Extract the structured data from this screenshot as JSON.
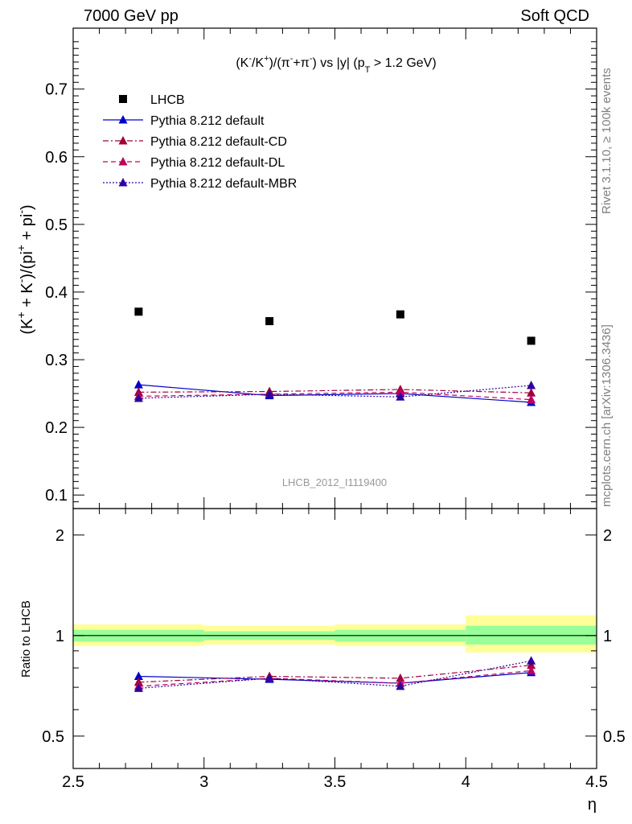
{
  "header": {
    "left": "7000 GeV pp",
    "right": "Soft QCD"
  },
  "side_labels": {
    "rivet": "Rivet 3.1.10, ≥ 100k events",
    "mcplots": "mcplots.cern.ch [arXiv:1306.3436]"
  },
  "colors": {
    "lhcb": "#000000",
    "default": "#0000cc",
    "cd": "#a0003c",
    "dl": "#c00060",
    "mbr": "#3000a0",
    "band_outer": "#ffff99",
    "band_inner": "#99ff99"
  },
  "chart_data": [
    {
      "type": "scatter",
      "title_parts": [
        "(K",
        "-",
        "/K",
        "+",
        ")/(π",
        "-",
        "+π",
        "-",
        ") vs |y| (p",
        "T",
        " > 1.2 GeV)"
      ],
      "ylabel_parts": [
        "(K",
        "+",
        " + K",
        "-",
        ")/(pi",
        "+",
        " + pi",
        "-",
        ")"
      ],
      "analysis_label": "LHCB_2012_I1119400",
      "xlim": [
        2.5,
        4.5
      ],
      "ylim": [
        0.08,
        0.79
      ],
      "yticks": [
        0.1,
        0.2,
        0.3,
        0.4,
        0.5,
        0.6,
        0.7
      ],
      "ytick_labels": [
        "0.1",
        "0.2",
        "0.3",
        "0.4",
        "0.5",
        "0.6",
        "0.7"
      ],
      "legend_position": "top-left",
      "series": [
        {
          "name": "LHCB",
          "style": "data",
          "color": "lhcb",
          "x": [
            2.75,
            3.25,
            3.75,
            4.25
          ],
          "y": [
            0.371,
            0.357,
            0.367,
            0.328
          ]
        },
        {
          "name": "Pythia 8.212 default",
          "style": "solid",
          "color": "default",
          "x": [
            2.75,
            3.25,
            3.75,
            4.25
          ],
          "y": [
            0.263,
            0.247,
            0.25,
            0.237
          ],
          "err": [
            0.005,
            0.005,
            0.005,
            0.005
          ]
        },
        {
          "name": "Pythia 8.212 default-CD",
          "style": "dashdot",
          "color": "cd",
          "x": [
            2.75,
            3.25,
            3.75,
            4.25
          ],
          "y": [
            0.252,
            0.253,
            0.256,
            0.251
          ],
          "err": [
            0.005,
            0.005,
            0.005,
            0.005
          ]
        },
        {
          "name": "Pythia 8.212 default-DL",
          "style": "dashed",
          "color": "dl",
          "x": [
            2.75,
            3.25,
            3.75,
            4.25
          ],
          "y": [
            0.246,
            0.249,
            0.252,
            0.241
          ],
          "err": [
            0.005,
            0.005,
            0.005,
            0.005
          ]
        },
        {
          "name": "Pythia 8.212 default-MBR",
          "style": "dotted",
          "color": "mbr",
          "x": [
            2.75,
            3.25,
            3.75,
            4.25
          ],
          "y": [
            0.243,
            0.249,
            0.245,
            0.262
          ],
          "err": [
            0.005,
            0.005,
            0.005,
            0.005
          ]
        }
      ]
    },
    {
      "type": "scatter",
      "ylabel": "Ratio to LHCB",
      "xlabel": "η",
      "xlim": [
        2.5,
        4.5
      ],
      "ylim": [
        0.4,
        2.4
      ],
      "log_y": true,
      "xticks": [
        2.5,
        3,
        3.5,
        4,
        4.5
      ],
      "xtick_labels": [
        "2.5",
        "3",
        "3.5",
        "4",
        "4.5"
      ],
      "yticks": [
        0.5,
        1,
        2
      ],
      "ytick_labels": [
        "0.5",
        "1",
        "2"
      ],
      "bands": [
        {
          "x0": 2.5,
          "x1": 3.0,
          "outer": [
            0.93,
            1.08
          ],
          "inner": [
            0.96,
            1.04
          ]
        },
        {
          "x0": 3.0,
          "x1": 3.5,
          "outer": [
            0.94,
            1.07
          ],
          "inner": [
            0.97,
            1.03
          ]
        },
        {
          "x0": 3.5,
          "x1": 4.0,
          "outer": [
            0.93,
            1.08
          ],
          "inner": [
            0.96,
            1.04
          ]
        },
        {
          "x0": 4.0,
          "x1": 4.5,
          "outer": [
            0.89,
            1.15
          ],
          "inner": [
            0.94,
            1.07
          ]
        }
      ],
      "series": [
        {
          "name": "Pythia 8.212 default",
          "style": "solid",
          "color": "default",
          "x": [
            2.75,
            3.25,
            3.75,
            4.25
          ],
          "y": [
            0.755,
            0.74,
            0.72,
            0.775
          ],
          "err": [
            0.012,
            0.012,
            0.012,
            0.015
          ]
        },
        {
          "name": "Pythia 8.212 default-CD",
          "style": "dashdot",
          "color": "cd",
          "x": [
            2.75,
            3.25,
            3.75,
            4.25
          ],
          "y": [
            0.725,
            0.755,
            0.745,
            0.815
          ],
          "err": [
            0.012,
            0.012,
            0.012,
            0.015
          ]
        },
        {
          "name": "Pythia 8.212 default-DL",
          "style": "dashed",
          "color": "dl",
          "x": [
            2.75,
            3.25,
            3.75,
            4.25
          ],
          "y": [
            0.705,
            0.745,
            0.72,
            0.785
          ],
          "err": [
            0.012,
            0.012,
            0.012,
            0.015
          ]
        },
        {
          "name": "Pythia 8.212 default-MBR",
          "style": "dotted",
          "color": "mbr",
          "x": [
            2.75,
            3.25,
            3.75,
            4.25
          ],
          "y": [
            0.695,
            0.745,
            0.705,
            0.84
          ],
          "err": [
            0.012,
            0.012,
            0.012,
            0.015
          ]
        }
      ]
    }
  ]
}
